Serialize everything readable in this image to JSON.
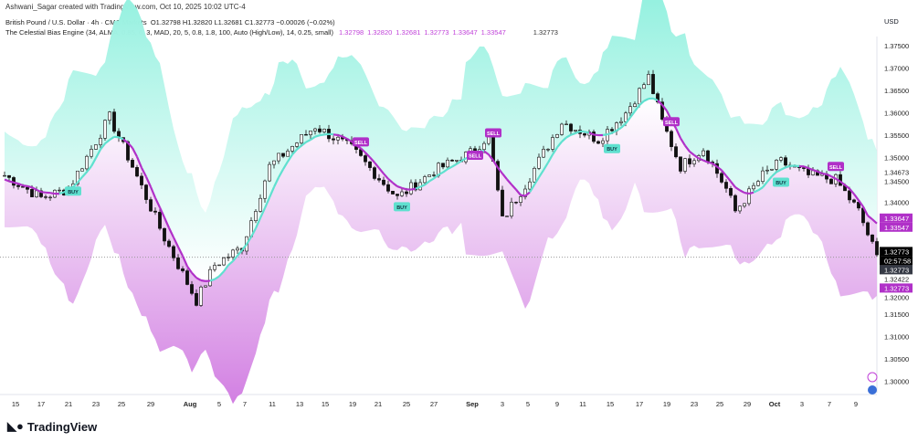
{
  "credit": "Ashwani_Sagar created with TradingView.com, Oct 10, 2025 10:02 UTC-4",
  "legend": {
    "symbol": "British Pound / U.S. Dollar · 4h · CMC Markets",
    "ohlc": "O1.32798  H1.32820  L1.32681  C1.32773  −0.00026 (−0.02%)",
    "indicator": "The Celestial Bias Engine (34, ALMA, 0.85, 6, 3, MAD, 20, 5, 0.8, 1.8, 100, Auto (High/Low), 14, 0.25, small)",
    "values": [
      "1.32798",
      "1.32820",
      "1.32681",
      "1.32773",
      "1.33647",
      "1.33547"
    ],
    "last": "1.32773"
  },
  "currency": "USD",
  "logo": "TradingView",
  "colors": {
    "up": "#0b0b0b",
    "teal": "#5fe0cf",
    "purple": "#b030c8",
    "bandTop": "#8ff0de",
    "bandBot": "#d98ae6"
  },
  "chart_data": {
    "type": "candlestick",
    "title": "GBPUSD 4h",
    "ylim": [
      1.295,
      1.3775
    ],
    "y_ticks": [
      "1.37500",
      "1.37000",
      "1.36500",
      "1.36000",
      "1.35500",
      "1.35000",
      "1.34500",
      "1.34000",
      "1.32000",
      "1.31500",
      "1.31000",
      "1.30500",
      "1.30000"
    ],
    "x_ticks": [
      "15",
      "17",
      "21",
      "23",
      "25",
      "29",
      "Aug",
      "5",
      "7",
      "11",
      "13",
      "15",
      "19",
      "21",
      "25",
      "27",
      "Sep",
      "3",
      "5",
      "9",
      "11",
      "15",
      "17",
      "19",
      "23",
      "25",
      "29",
      "Oct",
      "3",
      "7",
      "9"
    ],
    "price_keyframes": [
      [
        0,
        1.346
      ],
      [
        8,
        1.341
      ],
      [
        14,
        1.343
      ],
      [
        23,
        1.359
      ],
      [
        28,
        1.348
      ],
      [
        35,
        1.332
      ],
      [
        42,
        1.318
      ],
      [
        46,
        1.326
      ],
      [
        52,
        1.33
      ],
      [
        58,
        1.348
      ],
      [
        68,
        1.357
      ],
      [
        76,
        1.352
      ],
      [
        86,
        1.341
      ],
      [
        94,
        1.347
      ],
      [
        102,
        1.351
      ],
      [
        106,
        1.355
      ],
      [
        109,
        1.336
      ],
      [
        114,
        1.344
      ],
      [
        122,
        1.358
      ],
      [
        130,
        1.354
      ],
      [
        136,
        1.36
      ],
      [
        141,
        1.368
      ],
      [
        144,
        1.358
      ],
      [
        148,
        1.348
      ],
      [
        153,
        1.352
      ],
      [
        158,
        1.343
      ],
      [
        160,
        1.338
      ],
      [
        166,
        1.346
      ],
      [
        170,
        1.349
      ],
      [
        176,
        1.346
      ],
      [
        182,
        1.345
      ],
      [
        187,
        1.338
      ],
      [
        191,
        1.3277
      ]
    ],
    "price_labels": [
      {
        "text": "1.34673",
        "price": 1.34673,
        "bg": "none"
      },
      {
        "text": "1.34500",
        "price": 1.345,
        "bg": "none"
      },
      {
        "text": "1.34000",
        "price": 1.34,
        "bg": "none"
      },
      {
        "text": "1.33647",
        "price": 1.33647,
        "bg": "#b030c8"
      },
      {
        "text": "1.33547",
        "price": 1.33547,
        "bg": "#b030c8"
      },
      {
        "text": "1.32773",
        "price": 1.329,
        "bg": "#000"
      },
      {
        "text": "02:57:58",
        "price": 1.327,
        "bg": "#000"
      },
      {
        "text": "1.32773",
        "price": 1.325,
        "bg": "#363a45"
      },
      {
        "text": "1.32773",
        "price": 1.323,
        "bg": "#b030c8"
      },
      {
        "text": "1.32422",
        "price": 1.32422,
        "bg": "none"
      }
    ],
    "signals": [
      {
        "type": "BUY",
        "bar": 15,
        "price": 1.3425
      },
      {
        "type": "SELL",
        "bar": 78,
        "price": 1.3535
      },
      {
        "type": "BUY",
        "bar": 87,
        "price": 1.339
      },
      {
        "type": "SELL",
        "bar": 103,
        "price": 1.3505
      },
      {
        "type": "SELL",
        "bar": 107,
        "price": 1.3555
      },
      {
        "type": "BUY",
        "bar": 133,
        "price": 1.352
      },
      {
        "type": "SELL",
        "bar": 146,
        "price": 1.358
      },
      {
        "type": "BUY",
        "bar": 170,
        "price": 1.3445
      },
      {
        "type": "SELL",
        "bar": 182,
        "price": 1.348
      }
    ]
  }
}
